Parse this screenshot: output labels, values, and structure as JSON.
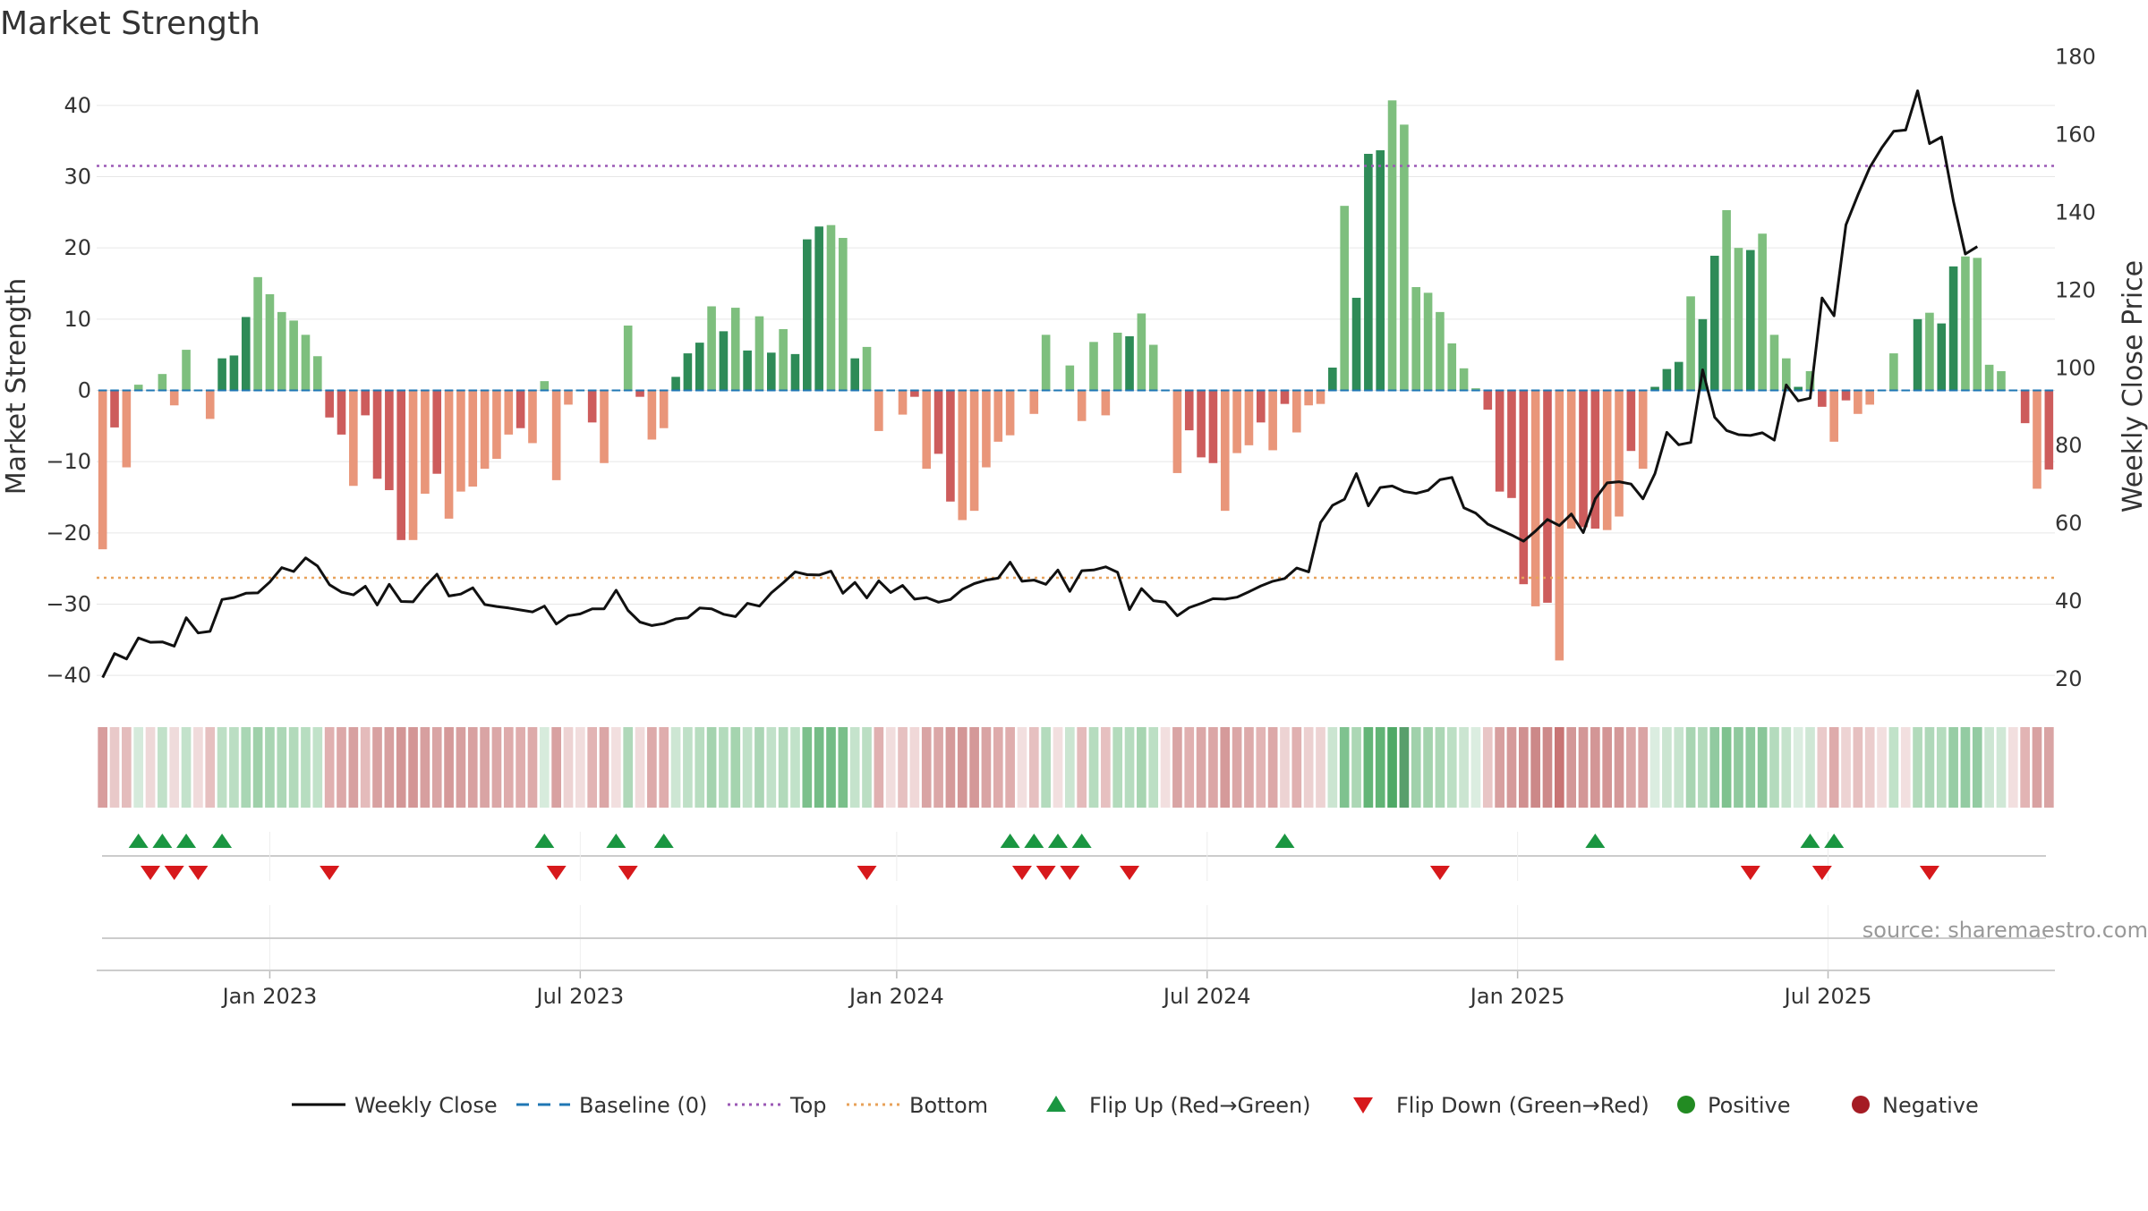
{
  "chart_data": {
    "type": "bar",
    "title": "Market Strength",
    "ylabel": "Market Strength",
    "y2label": "Weekly Close Price",
    "source": "source: sharemaestro.com",
    "ylim": [
      -45,
      45
    ],
    "yticks": [
      40,
      30,
      20,
      10,
      0,
      -10,
      -20,
      -30,
      -40
    ],
    "ytick_labels": [
      "40",
      "30",
      "20",
      "10",
      "0",
      "−10",
      "−20",
      "−30",
      "−40"
    ],
    "y2lim": [
      11.7,
      176.7
    ],
    "y2ticks": [
      180,
      160,
      140,
      120,
      100,
      80,
      60,
      40,
      20
    ],
    "y2tick_labels": [
      "180",
      "160",
      "140",
      "120",
      "100",
      "80",
      "60",
      "40",
      "20"
    ],
    "top_level": 31.5,
    "bottom_level": -26.3,
    "x_labels": [
      "Jan 2023",
      "Jul 2023",
      "Jan 2024",
      "Jul 2024",
      "Jan 2025",
      "Jul 2025"
    ],
    "x_label_weeks": [
      14,
      40,
      66.5,
      92.5,
      118.5,
      144.5
    ],
    "strength": [
      -22.3,
      -5.2,
      -10.8,
      0.8,
      0,
      2.3,
      -2.1,
      5.7,
      0,
      -4,
      4.5,
      4.9,
      10.3,
      15.9,
      13.5,
      11,
      9.8,
      7.8,
      4.8,
      -3.8,
      -6.2,
      -13.4,
      -3.5,
      -12.4,
      -14,
      -21,
      -21,
      -14.5,
      -11.7,
      -18,
      -14.2,
      -13.5,
      -11,
      -9.6,
      -6.2,
      -5.3,
      -7.4,
      1.3,
      -12.6,
      -2,
      0,
      -4.5,
      -10.2,
      0,
      9.1,
      -0.9,
      -6.9,
      -5.3,
      1.9,
      5.2,
      6.7,
      11.8,
      8.3,
      11.6,
      5.6,
      10.4,
      5.3,
      8.6,
      5.1,
      21.2,
      23,
      23.2,
      21.4,
      4.5,
      6.1,
      -5.7,
      0,
      -3.4,
      -0.9,
      -11,
      -8.9,
      -15.6,
      -18.2,
      -16.9,
      -10.8,
      -7.2,
      -6.3,
      0,
      -3.3,
      7.8,
      0,
      3.5,
      -4.3,
      6.8,
      -3.5,
      8.1,
      7.6,
      10.8,
      6.4,
      0,
      -11.6,
      -5.6,
      -9.4,
      -10.2,
      -16.9,
      -8.8,
      -7.7,
      -4.5,
      -8.4,
      -1.9,
      -5.9,
      -2.1,
      -1.9,
      3.2,
      25.9,
      13,
      33.2,
      33.7,
      40.7,
      37.3,
      14.5,
      13.7,
      11,
      6.6,
      3.1,
      0.3,
      -2.7,
      -14.2,
      -15.1,
      -27.2,
      -30.3,
      -29.8,
      -37.9,
      -19.4,
      -19.2,
      -19.4,
      -19.6,
      -17.7,
      -8.5,
      -11,
      0.5,
      3,
      4,
      13.2,
      10,
      18.9,
      25.3,
      20,
      19.7,
      22,
      7.8,
      4.5,
      0.5,
      2.7,
      -2.3,
      -7.2,
      -1.4,
      -3.3,
      -2,
      0,
      5.2,
      0,
      10,
      10.9,
      9.4,
      17.4,
      18.8,
      18.6,
      3.6,
      2.7,
      0,
      -4.6,
      -13.8,
      -11.1
    ],
    "weekly_close": [
      20.3,
      26.5,
      25.1,
      30.5,
      29.4,
      29.5,
      28.4,
      35.7,
      31.8,
      32.2,
      40.4,
      40.9,
      42,
      42.1,
      44.9,
      48.6,
      47.6,
      51.1,
      49,
      44.2,
      42.3,
      41.6,
      43.8,
      39,
      44.3,
      39.9,
      39.8,
      43.7,
      46.9,
      41.3,
      41.8,
      43.4,
      39.1,
      38.6,
      38.2,
      37.7,
      37.2,
      38.7,
      34.1,
      36.2,
      36.7,
      38,
      38,
      42.8,
      37.6,
      34.6,
      33.7,
      34.2,
      35.4,
      35.7,
      38.2,
      38,
      36.6,
      36,
      39.4,
      38.7,
      42.1,
      44.7,
      47.5,
      46.8,
      46.7,
      47.7,
      42,
      44.8,
      40.8,
      45.2,
      42.2,
      44,
      40.5,
      40.9,
      39.7,
      40.4,
      43,
      44.5,
      45.4,
      45.9,
      50,
      45.1,
      45.4,
      44.3,
      48,
      42.5,
      47.8,
      48,
      48.8,
      47.4,
      37.8,
      43.2,
      40.1,
      39.7,
      36.2,
      38.3,
      39.4,
      40.6,
      40.5,
      41,
      42.4,
      43.9,
      45.1,
      45.8,
      48.5,
      47.5,
      60.2,
      64.6,
      66.2,
      72.8,
      64.5,
      69.2,
      69.6,
      68.2,
      67.7,
      68.5,
      71.2,
      71.8,
      64,
      62.6,
      59.8,
      58.4,
      57,
      55.4,
      58,
      61,
      59.4,
      62.4,
      57.6,
      66.3,
      70.4,
      70.7,
      70.1,
      66.3,
      72.8,
      83.4,
      80.2,
      80.8,
      99.5,
      87.3,
      83.9,
      82.8,
      82.6,
      83.3,
      81.4,
      95.6,
      91.5,
      92.2,
      118,
      113.4,
      136.8,
      144.5,
      151.6,
      156.6,
      160.9,
      161.2,
      171.3,
      157.7,
      159.4,
      142.9,
      129.3,
      131.2
    ],
    "flips_up": [
      3,
      5,
      7,
      10,
      37,
      43,
      47,
      76,
      78,
      80,
      82,
      99,
      125,
      143,
      145
    ],
    "flips_down": [
      4,
      6,
      8,
      19,
      38,
      44,
      64,
      77,
      79,
      81,
      86,
      112,
      138,
      144,
      153
    ],
    "strip_colors": [
      "#d89d9d",
      "#e9c9c9",
      "#e4bcbc",
      "#d5eadb",
      "#eed8d8",
      "#c1e1c9",
      "#efdbdb",
      "#c3e2cb",
      "#f0dbdb",
      "#e6c0c0",
      "#bddfc5",
      "#bbdec3",
      "#a9d6b4",
      "#9fd0aa",
      "#a8d5b2",
      "#acd7b6",
      "#b2dabb",
      "#b7ddc0",
      "#c1e2c9",
      "#e0b0b0",
      "#dca8a8",
      "#d7a0a0",
      "#e4bbbb",
      "#d8a1a1",
      "#d79f9f",
      "#d39696",
      "#d39696",
      "#d79f9f",
      "#d9a4a4",
      "#d59999",
      "#d79f9f",
      "#d8a1a1",
      "#d9a4a4",
      "#dba7a7",
      "#deabab",
      "#dfadad",
      "#ddaaaa",
      "#d7ebdc",
      "#d8a1a1",
      "#edd3d3",
      "#f1dddd",
      "#e2b4b4",
      "#dba6a6",
      "#f2dfdf",
      "#afd8b9",
      "#f0dbdb",
      "#ddaaaa",
      "#dfadad",
      "#cde6d3",
      "#bfe0c7",
      "#b8ddc0",
      "#a4d3ae",
      "#b3dbbc",
      "#a5d4af",
      "#c0e1c8",
      "#abd6b5",
      "#c1e1c9",
      "#b2dabb",
      "#c1e2c9",
      "#7cc08c",
      "#74bc86",
      "#73bc85",
      "#7abf8a",
      "#c5e3cc",
      "#bbdec3",
      "#e0b0b0",
      "#f1dddd",
      "#e6c0c0",
      "#f0d8d8",
      "#d9a4a4",
      "#dba7a7",
      "#d59a9a",
      "#d39696",
      "#d49898",
      "#d9a4a4",
      "#deabab",
      "#dfadad",
      "#f2dfdf",
      "#e6c0c0",
      "#b4dbbd",
      "#f2dfdf",
      "#cbe5d1",
      "#e4bbbb",
      "#b6dcbf",
      "#e6c0c0",
      "#b3dbbc",
      "#b6dcbf",
      "#a7d5b1",
      "#bcdfc4",
      "#f2dfdf",
      "#d9a4a4",
      "#e0b0b0",
      "#dba7a7",
      "#dba6a6",
      "#d59a9a",
      "#dba7a7",
      "#ddaaaa",
      "#e2b4b4",
      "#dca8a8",
      "#edd3d3",
      "#e0b0b0",
      "#ecd0d0",
      "#edd3d3",
      "#cbe5d1",
      "#7fc28f",
      "#acd7b5",
      "#63b577",
      "#61b475",
      "#4ea966",
      "#589f6c",
      "#a0d1ab",
      "#a3d3ad",
      "#acd7b5",
      "#bcdfc4",
      "#cbe5d1",
      "#dbede0",
      "#e8c5c5",
      "#d79f9f",
      "#d59a9a",
      "#d09090",
      "#cc8888",
      "#cd8a8a",
      "#c87474",
      "#d39797",
      "#d39797",
      "#d39696",
      "#d39595",
      "#d49898",
      "#dba7a7",
      "#d9a4a4",
      "#dbede0",
      "#cbe5d1",
      "#c7e4ce",
      "#a8d5b2",
      "#b2dabb",
      "#91caa0",
      "#7fc28f",
      "#8fc99e",
      "#90ca9f",
      "#89c699",
      "#b4dbbd",
      "#c5e3cc",
      "#dbede0",
      "#cfe7d5",
      "#eacaca",
      "#deabab",
      "#edd3d3",
      "#e6c0c0",
      "#ebcdcd",
      "#f2dfdf",
      "#c1e2c9",
      "#f2dfdf",
      "#b2dabb",
      "#afd8b9",
      "#b5dcbe",
      "#97cda5",
      "#93cba2",
      "#93cba2",
      "#cde6d3",
      "#d0e8d6",
      "#f2dfdf",
      "#e2b4b4",
      "#d8a2a2",
      "#d9a4a4"
    ],
    "legend": [
      {
        "label": "Weekly Close",
        "kind": "line",
        "color": "#000000"
      },
      {
        "label": "Baseline (0)",
        "kind": "dash",
        "color": "#1f77b4"
      },
      {
        "label": "Top",
        "kind": "dot",
        "color": "#9b59b6"
      },
      {
        "label": "Bottom",
        "kind": "dot",
        "color": "#e8a25a"
      },
      {
        "label": "Flip Up (Red→Green)",
        "kind": "triangle-up",
        "color": "#1a9641"
      },
      {
        "label": "Flip Down (Green→Red)",
        "kind": "triangle-down",
        "color": "#d7191c"
      },
      {
        "label": "Positive",
        "kind": "circle",
        "color": "#228b22"
      },
      {
        "label": "Negative",
        "kind": "circle",
        "color": "#a51c24"
      }
    ],
    "colors": {
      "pos_strong": "#2e8b57",
      "pos_weak": "#7ebf7e",
      "neg_strong": "#cd5c5c",
      "neg_weak": "#e9967a",
      "baseline": "#1f77b4",
      "top": "#9b59b6",
      "bottom": "#e8a25a",
      "close": "#111111",
      "grid": "#e6e6e6"
    }
  }
}
